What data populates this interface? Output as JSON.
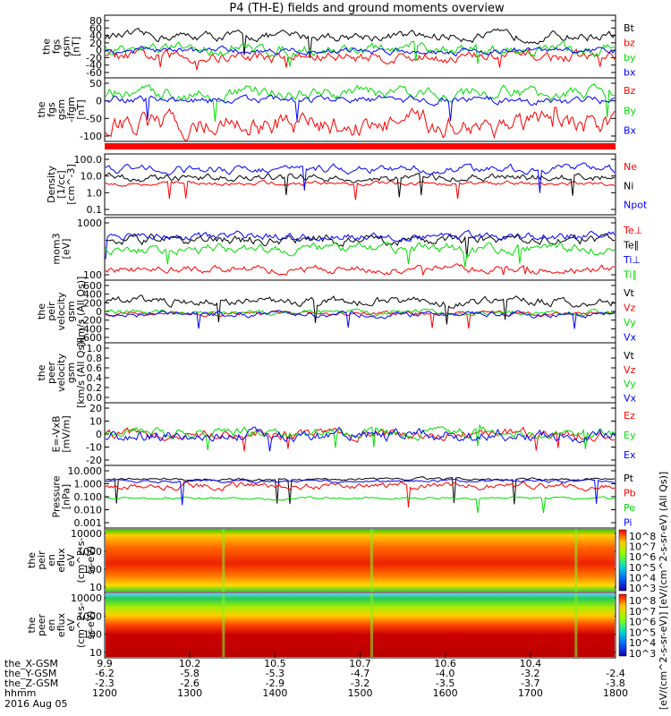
{
  "title": "P4 (TH-E) fields and ground moments overview",
  "colors": {
    "black": "#000000",
    "red": "#ff0000",
    "green": "#00dd00",
    "blue": "#0000ff"
  },
  "chart_data": [
    {
      "type": "line",
      "id": "p1",
      "ylabel": [
        "the",
        "fgs",
        "gsm",
        "[nT]"
      ],
      "ticks": [
        "80",
        "60",
        "40",
        "20",
        "0",
        "-20",
        "-40",
        "-60"
      ],
      "ylim": [
        -65,
        85
      ],
      "series": [
        {
          "name": "Bt",
          "color": "black",
          "base": 35,
          "amp": 8
        },
        {
          "name": "bz",
          "color": "red",
          "base": -15,
          "amp": 10
        },
        {
          "name": "by",
          "color": "green",
          "base": 3,
          "amp": 10
        },
        {
          "name": "bx",
          "color": "blue",
          "base": 0,
          "amp": 6
        }
      ]
    },
    {
      "type": "line",
      "id": "p2",
      "ylabel": [
        "the",
        "fgs",
        "gsm",
        "-ifgm",
        "[nT]"
      ],
      "ticks": [
        "50",
        "0",
        "-50",
        "-100"
      ],
      "ylim": [
        -115,
        55
      ],
      "series": [
        {
          "name": "Bz",
          "color": "red",
          "base": -70,
          "amp": 22
        },
        {
          "name": "By",
          "color": "green",
          "base": 15,
          "amp": 12
        },
        {
          "name": "Bx",
          "color": "blue",
          "base": -5,
          "amp": 8
        }
      ]
    },
    {
      "type": "line",
      "id": "p3",
      "ylabel": [
        "Density",
        "[1/cc]",
        "[cm^-3]"
      ],
      "ticks": [
        "100.0",
        "10.0",
        "1.0",
        "0.1"
      ],
      "log": true,
      "ylim": [
        0.1,
        200
      ],
      "series": [
        {
          "name": "Ne",
          "color": "red",
          "base": 5,
          "amp": 0.08
        },
        {
          "name": "Ni",
          "color": "black",
          "base": 10,
          "amp": 0.15
        },
        {
          "name": "Npot",
          "color": "blue",
          "base": 30,
          "amp": 0.15
        }
      ]
    },
    {
      "type": "line",
      "id": "p4",
      "ylabel": [
        "mom3",
        "[eV]"
      ],
      "ticks": [
        "1000",
        "100"
      ],
      "log": true,
      "ylim": [
        50,
        3000
      ],
      "series": [
        {
          "name": "Te⊥",
          "color": "red",
          "base": 100,
          "amp": 0.08
        },
        {
          "name": "Te∥",
          "color": "black",
          "base": 700,
          "amp": 0.1
        },
        {
          "name": "Ti⊥",
          "color": "blue",
          "base": 900,
          "amp": 0.08
        },
        {
          "name": "Ti∥",
          "color": "green",
          "base": 380,
          "amp": 0.1
        }
      ]
    },
    {
      "type": "line",
      "id": "p5",
      "ylabel": [
        "the",
        "peir",
        "velocity",
        "gsm",
        "[km/s (All Qs)]"
      ],
      "ticks": [
        "600",
        "400",
        "200",
        "0",
        "-200",
        "-400",
        "-600"
      ],
      "ylim": [
        -620,
        620
      ],
      "series": [
        {
          "name": "Vt",
          "color": "black",
          "base": 200,
          "amp": 60
        },
        {
          "name": "Vz",
          "color": "red",
          "base": -40,
          "amp": 30
        },
        {
          "name": "Vy",
          "color": "green",
          "base": -20,
          "amp": 35
        },
        {
          "name": "Vx",
          "color": "blue",
          "base": -60,
          "amp": 40
        }
      ]
    },
    {
      "type": "line",
      "id": "p6",
      "ylabel": [
        "the",
        "peer",
        "velocity",
        "gsm",
        "[km/s (All Qs)]"
      ],
      "ticks": [
        "1.0",
        "0.8",
        "0.6",
        "0.4",
        "0.2",
        "0.0"
      ],
      "ylim": [
        0,
        1
      ],
      "series": [
        {
          "name": "Vt",
          "color": "black"
        },
        {
          "name": "Vz",
          "color": "red"
        },
        {
          "name": "Vy",
          "color": "green"
        },
        {
          "name": "Vx",
          "color": "blue"
        }
      ]
    },
    {
      "type": "line",
      "id": "p7",
      "ylabel": [
        "E=-VxB",
        "[mV/m]"
      ],
      "ticks": [
        "20",
        "10",
        "0",
        "-10",
        "-20"
      ],
      "ylim": [
        -22,
        22
      ],
      "series": [
        {
          "name": "Ez",
          "color": "red",
          "base": 0,
          "amp": 2.5
        },
        {
          "name": "Ey",
          "color": "green",
          "base": 1,
          "amp": 2.5
        },
        {
          "name": "Ex",
          "color": "blue",
          "base": -1,
          "amp": 3
        }
      ]
    },
    {
      "type": "line",
      "id": "p8",
      "ylabel": [
        "Pressure",
        "[nPa]"
      ],
      "ticks": [
        "10.000",
        "1.000",
        "0.100",
        "0.010",
        "0.001"
      ],
      "log": true,
      "ylim": [
        0.001,
        10
      ],
      "series": [
        {
          "name": "Pt",
          "color": "black",
          "base": 1.3,
          "amp": 0.06
        },
        {
          "name": "Pb",
          "color": "red",
          "base": 0.5,
          "amp": 0.15
        },
        {
          "name": "Pe",
          "color": "green",
          "base": 0.08,
          "amp": 0.06
        },
        {
          "name": "Pi",
          "color": "blue",
          "base": 1.0,
          "amp": 0.06
        }
      ]
    },
    {
      "type": "heatmap",
      "id": "p9",
      "ylabel": [
        "the",
        "peir",
        "en",
        "eflux",
        "eV",
        "(cm^2-s-",
        "sr-eV)"
      ],
      "ticks": [
        "10000",
        "1000",
        "100",
        "10"
      ]
    },
    {
      "type": "heatmap",
      "id": "p10",
      "ylabel": [
        "the",
        "peer",
        "en",
        "eflux",
        "eV",
        "(cm^2-s-",
        "sr-eV)"
      ],
      "ticks": [
        "10000",
        "1000",
        "100",
        "10"
      ]
    }
  ],
  "colorbar": {
    "ticks": [
      "10^8",
      "10^7",
      "10^6",
      "10^5",
      "10^4",
      "10^3"
    ],
    "label": "[eV/(cm^2-s-sr-eV)] [eV/(cm^2-s-sr-eV) (All Qs)]"
  },
  "bottom": {
    "rows": [
      {
        "label": "the_X-GSM",
        "values": [
          "9.9",
          "10.2",
          "10.5",
          "10.7",
          "10.6",
          "10.4"
        ],
        "extra": [
          "-6.2",
          "-5.8",
          "-5.3",
          "-4.7",
          "-4.0",
          "-3.2",
          "-2.4"
        ]
      },
      {
        "label": "the_Y-GSM",
        "values": [
          "-2.3",
          "-2.6",
          "-2.9",
          "-3.2",
          "-3.5",
          "-3.7",
          "-3.8"
        ]
      },
      {
        "label": "the_Z-GSM",
        "values": []
      },
      {
        "label": "hhmm",
        "values": [
          "1200",
          "1300",
          "1400",
          "1500",
          "1600",
          "1700",
          "1800"
        ]
      }
    ],
    "top_values": [
      "9.9",
      "10.2",
      "10.5",
      "10.7",
      "10.6",
      "10.4"
    ],
    "date": "2016 Aug 05"
  }
}
